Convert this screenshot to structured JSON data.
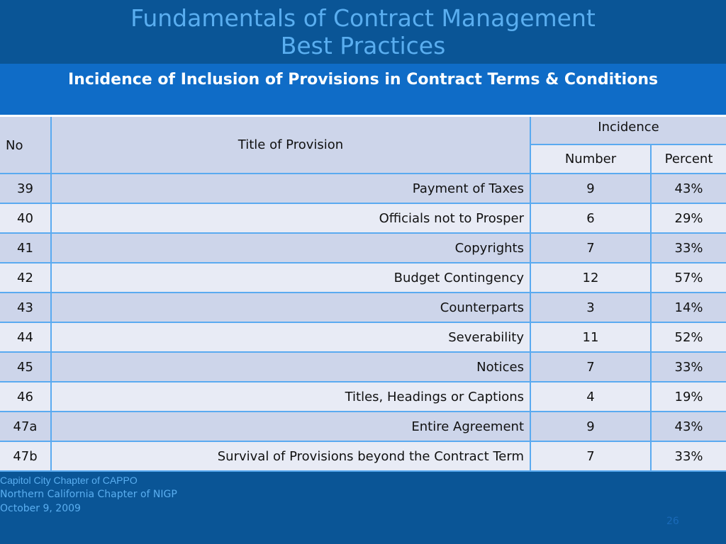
{
  "slide": {
    "title_line1": "Fundamentals of Contract Management",
    "title_line2": "Best Practices"
  },
  "table": {
    "caption": "Incidence of Inclusion of Provisions in Contract Terms  & Conditions",
    "headers": {
      "no": "No",
      "title": "Title of Provision",
      "incidence": "Incidence",
      "number": "Number",
      "percent": "Percent"
    },
    "rows": [
      {
        "no": "39",
        "title": "Payment of Taxes",
        "number": "9",
        "percent": "43%"
      },
      {
        "no": "40",
        "title": "Officials not to Prosper",
        "number": "6",
        "percent": "29%"
      },
      {
        "no": "41",
        "title": "Copyrights",
        "number": "7",
        "percent": "33%"
      },
      {
        "no": "42",
        "title": "Budget Contingency",
        "number": "12",
        "percent": "57%"
      },
      {
        "no": "43",
        "title": "Counterparts",
        "number": "3",
        "percent": "14%"
      },
      {
        "no": "44",
        "title": "Severability",
        "number": "11",
        "percent": "52%"
      },
      {
        "no": "45",
        "title": "Notices",
        "number": "7",
        "percent": "33%"
      },
      {
        "no": "46",
        "title": "Titles, Headings or Captions",
        "number": "4",
        "percent": "19%"
      },
      {
        "no": "47a",
        "title": "Entire Agreement",
        "number": "9",
        "percent": "43%"
      },
      {
        "no": "47b",
        "title": "Survival of Provisions beyond the Contract Term",
        "number": "7",
        "percent": "33%"
      }
    ]
  },
  "footer": {
    "line1": "Capitol City Chapter of CAPPO",
    "line2": "Northern California Chapter of NIGP",
    "line3": "October 9, 2009",
    "page_number": "26"
  },
  "colors": {
    "background": "#0a5596",
    "title_text": "#5aaef0",
    "caption_bg": "#0f6cc7",
    "row_dark": "#cdd5ea",
    "row_light": "#e8ebf5",
    "grid": "#5aaaf0"
  }
}
